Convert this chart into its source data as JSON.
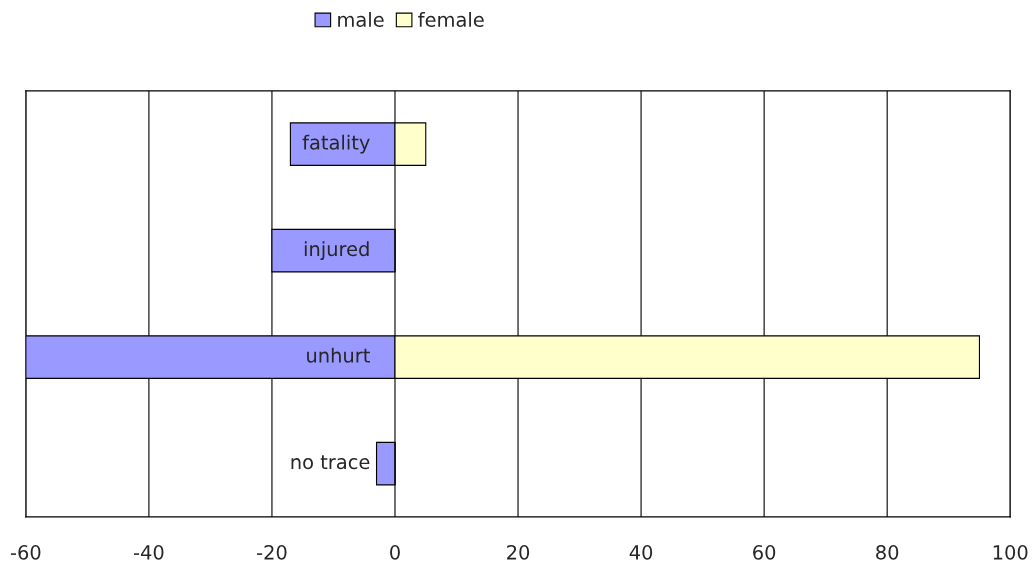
{
  "chart_data": {
    "type": "bar",
    "orientation": "horizontal",
    "categories": [
      "fatality",
      "injured",
      "unhurt",
      "no trace"
    ],
    "series": [
      {
        "name": "male",
        "color": "#9999ff",
        "values": [
          -17,
          -20,
          -60,
          -3
        ]
      },
      {
        "name": "female",
        "color": "#ffffcc",
        "values": [
          5,
          0,
          95,
          0
        ]
      }
    ],
    "xlim": [
      -60,
      100
    ],
    "xticks": [
      -60,
      -40,
      -20,
      0,
      20,
      40,
      60,
      80,
      100
    ],
    "stacked": true,
    "grid": "x",
    "legend": "top"
  }
}
